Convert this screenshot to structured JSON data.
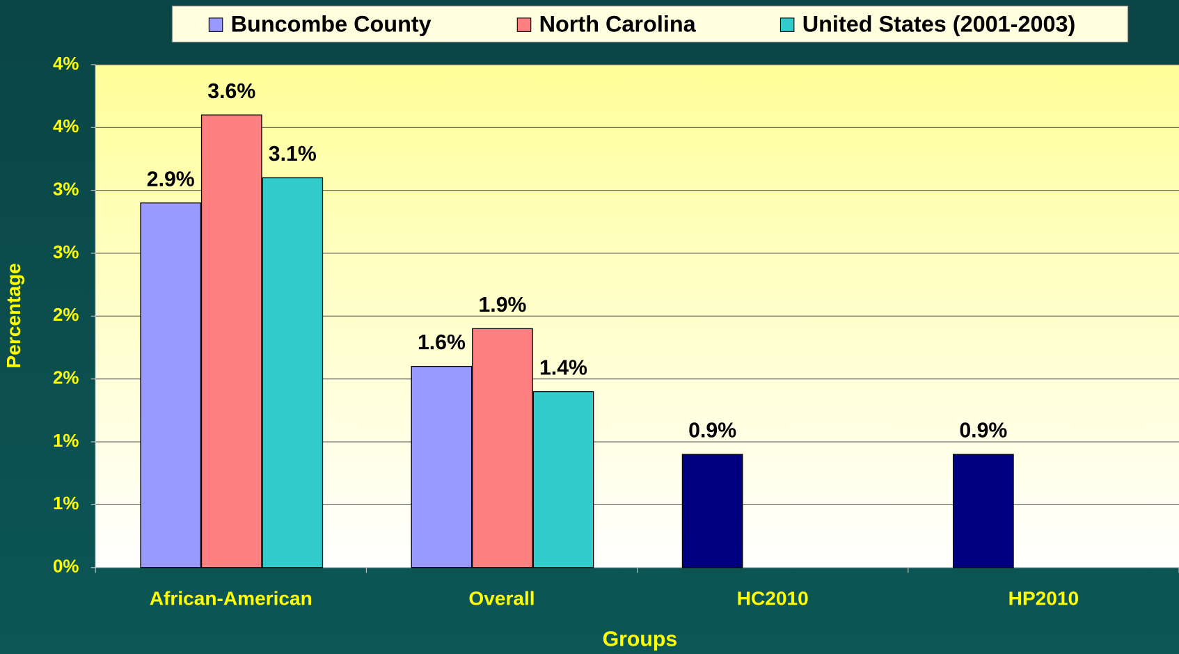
{
  "chart_data": {
    "type": "bar",
    "categories": [
      "African-American",
      "Overall",
      "HC2010",
      "HP2010"
    ],
    "series": [
      {
        "name": "Buncombe County",
        "color": "#9999ff",
        "point_colors": [
          "#9999ff",
          "#9999ff",
          "#000080",
          "#000080"
        ],
        "values": [
          2.9,
          1.6,
          0.9,
          0.9
        ],
        "value_labels": [
          "2.9%",
          "1.6%",
          "0.9%",
          "0.9%"
        ]
      },
      {
        "name": "North Carolina",
        "color": "#ff8080",
        "values": [
          3.6,
          1.9,
          null,
          null
        ],
        "value_labels": [
          "3.6%",
          "1.9%",
          null,
          null
        ]
      },
      {
        "name": "United States (2001-2003)",
        "color": "#33cccc",
        "values": [
          3.1,
          1.4,
          null,
          null
        ],
        "value_labels": [
          "3.1%",
          "1.4%",
          null,
          null
        ]
      }
    ],
    "x_label": "Groups",
    "y_label": "Percentage",
    "ylim": [
      0,
      4
    ],
    "yticks": [
      {
        "value": 0,
        "label": "0%"
      },
      {
        "value": 0.5,
        "label": "1%"
      },
      {
        "value": 1,
        "label": "1%"
      },
      {
        "value": 1.5,
        "label": "2%"
      },
      {
        "value": 2,
        "label": "2%"
      },
      {
        "value": 2.5,
        "label": "3%"
      },
      {
        "value": 3,
        "label": "3%"
      },
      {
        "value": 3.5,
        "label": "4%"
      },
      {
        "value": 4,
        "label": "4%"
      }
    ],
    "grid": true,
    "legend": "top"
  }
}
